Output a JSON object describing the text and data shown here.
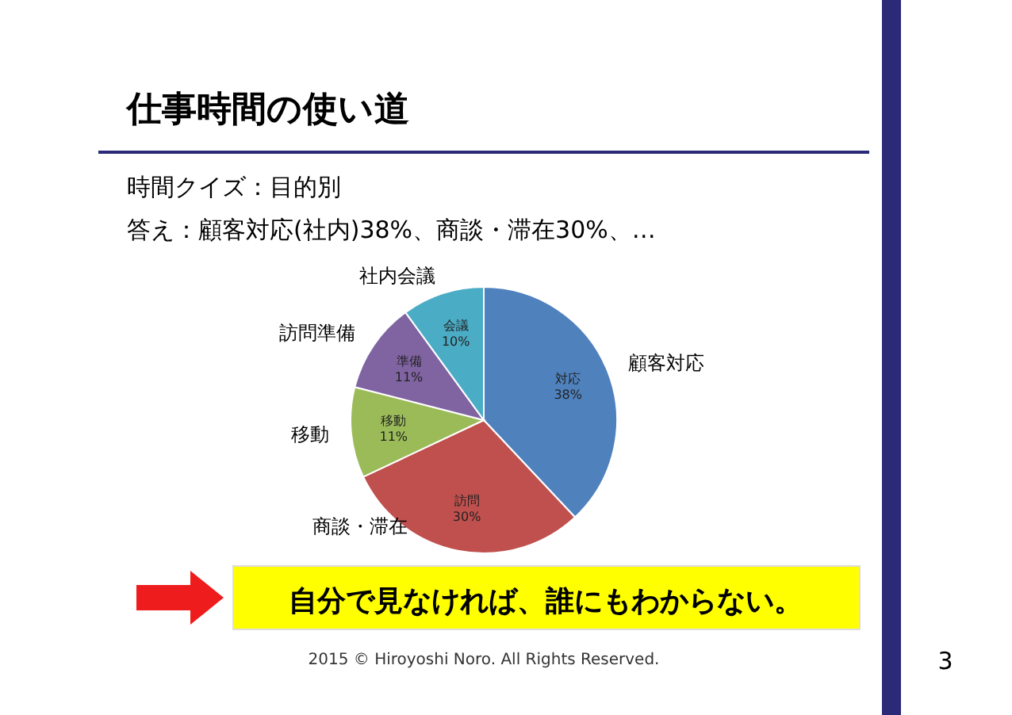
{
  "chart_data": {
    "type": "pie",
    "title": "仕事時間の使い道",
    "subtitle": "時間クイズ：目的別",
    "categories": [
      "顧客対応",
      "商談・滞在",
      "移動",
      "訪問準備",
      "社内会議"
    ],
    "values": [
      38,
      30,
      11,
      11,
      10
    ],
    "colors": [
      "#4f81bd",
      "#c0504d",
      "#9bbb59",
      "#8064a2",
      "#4bacc6"
    ],
    "value_labels": [
      "対応\n38%",
      "訪問\n30%",
      "移動\n11%",
      "準備\n11%",
      "会議\n10%"
    ],
    "legend": false,
    "annotations": [
      "答え：顧客対応(社内)38%、商談・滞在30%、…",
      "自分で見なければ、誰にもわからない。",
      "2015 © Hiroyoshi Noro. All Rights Reserved.",
      "3"
    ]
  }
}
